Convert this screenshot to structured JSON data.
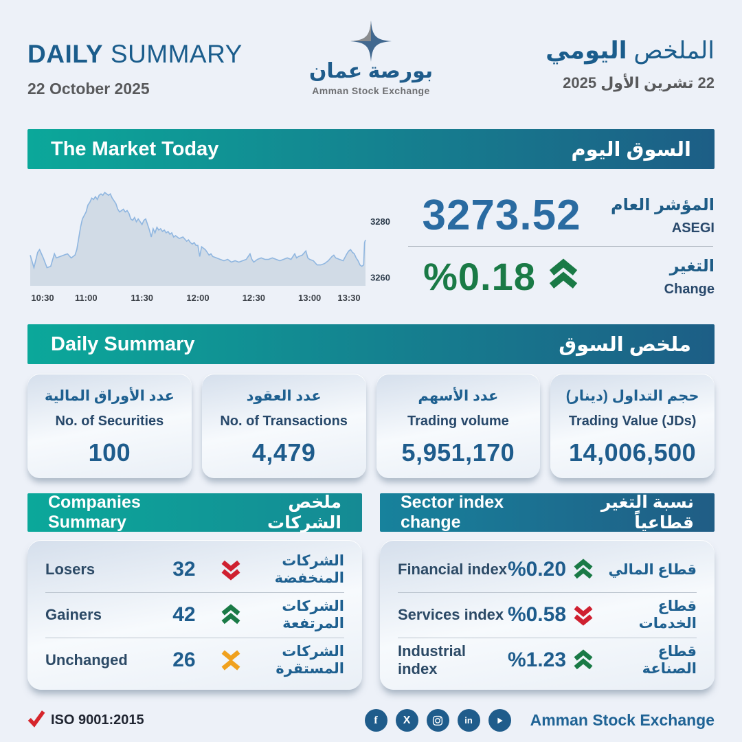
{
  "header": {
    "title_en_bold": "DAILY",
    "title_en_rest": " SUMMARY",
    "date_en": "22 October 2025",
    "title_ar_prefix": "الملخص ",
    "title_ar_bold": "اليومي",
    "date_ar": "22 تشرين الأول 2025",
    "logo": {
      "name_ar": "بورصة عمان",
      "name_en": "Amman Stock Exchange"
    }
  },
  "market_today": {
    "banner_en": "The Market Today",
    "banner_ar": "السوق اليوم",
    "index_value": "3273.52",
    "index_label_ar": "المؤشر العام",
    "index_label_en": "ASEGI",
    "change_value": "%0.18",
    "change_direction": "up",
    "change_label_ar": "التغير",
    "change_label_en": "Change"
  },
  "chart_data": {
    "type": "area",
    "title": "ASEGI general index intraday",
    "x_ticks": [
      "10:30",
      "11:00",
      "11:30",
      "12:00",
      "12:30",
      "13:00",
      "13:30"
    ],
    "x_tick_minutes": [
      0,
      30,
      60,
      90,
      120,
      150,
      180
    ],
    "y_ticks": [
      3280,
      3260
    ],
    "ylim": [
      3257,
      3293
    ],
    "line_color": "#8fb6e0",
    "fill_color": "#cdd8e3",
    "points": [
      [
        0,
        3268
      ],
      [
        2,
        3263.5
      ],
      [
        4,
        3269
      ],
      [
        5,
        3270
      ],
      [
        7,
        3267
      ],
      [
        9,
        3263.5
      ],
      [
        11,
        3264
      ],
      [
        13,
        3268.5
      ],
      [
        14,
        3267
      ],
      [
        16,
        3267.5
      ],
      [
        18,
        3268
      ],
      [
        20,
        3268.5
      ],
      [
        22,
        3267
      ],
      [
        24,
        3268
      ],
      [
        25,
        3270
      ],
      [
        26,
        3274
      ],
      [
        27,
        3278
      ],
      [
        28,
        3281
      ],
      [
        30,
        3283.5
      ],
      [
        31,
        3286
      ],
      [
        32,
        3287
      ],
      [
        33,
        3288.5
      ],
      [
        34,
        3288
      ],
      [
        35,
        3289
      ],
      [
        36,
        3288
      ],
      [
        37,
        3289.5
      ],
      [
        38,
        3290
      ],
      [
        39,
        3289.5
      ],
      [
        40,
        3290.5
      ],
      [
        41,
        3290
      ],
      [
        42,
        3289.5
      ],
      [
        43,
        3290
      ],
      [
        44,
        3288.5
      ],
      [
        45,
        3287.5
      ],
      [
        46,
        3286.5
      ],
      [
        47,
        3284.5
      ],
      [
        48,
        3283.5
      ],
      [
        49,
        3284
      ],
      [
        50,
        3284.5
      ],
      [
        51,
        3283.5
      ],
      [
        52,
        3284
      ],
      [
        53,
        3283
      ],
      [
        54,
        3281
      ],
      [
        55,
        3280.5
      ],
      [
        56,
        3281.5
      ],
      [
        57,
        3280
      ],
      [
        58,
        3281
      ],
      [
        59,
        3280
      ],
      [
        60,
        3279
      ],
      [
        61,
        3280.5
      ],
      [
        62,
        3281
      ],
      [
        63,
        3279
      ],
      [
        64,
        3277
      ],
      [
        65,
        3274.5
      ],
      [
        66,
        3277.5
      ],
      [
        67,
        3276
      ],
      [
        68,
        3278
      ],
      [
        69,
        3277
      ],
      [
        70,
        3277.5
      ],
      [
        71,
        3276.5
      ],
      [
        72,
        3277
      ],
      [
        73,
        3276
      ],
      [
        74,
        3276.5
      ],
      [
        75,
        3275.5
      ],
      [
        76,
        3276
      ],
      [
        77,
        3274.5
      ],
      [
        78,
        3275
      ],
      [
        80,
        3274
      ],
      [
        82,
        3274.5
      ],
      [
        84,
        3273
      ],
      [
        85,
        3273.5
      ],
      [
        86,
        3272.5
      ],
      [
        87,
        3272
      ],
      [
        88,
        3272.5
      ],
      [
        89,
        3271.5
      ],
      [
        90,
        3271.5
      ],
      [
        91,
        3267.5
      ],
      [
        92,
        3271
      ],
      [
        93,
        3270.5
      ],
      [
        94,
        3270
      ],
      [
        95,
        3269
      ],
      [
        96,
        3268
      ],
      [
        97,
        3268.5
      ],
      [
        98,
        3267.5
      ],
      [
        100,
        3267
      ],
      [
        102,
        3266.5
      ],
      [
        104,
        3266
      ],
      [
        106,
        3266.5
      ],
      [
        108,
        3265.5
      ],
      [
        110,
        3266
      ],
      [
        112,
        3265.5
      ],
      [
        114,
        3266
      ],
      [
        116,
        3266.5
      ],
      [
        118,
        3268.5
      ],
      [
        119,
        3266.5
      ],
      [
        120,
        3265.5
      ],
      [
        122,
        3266.5
      ],
      [
        124,
        3267
      ],
      [
        126,
        3266.5
      ],
      [
        128,
        3266.5
      ],
      [
        130,
        3267
      ],
      [
        132,
        3266.5
      ],
      [
        134,
        3266
      ],
      [
        136,
        3266.5
      ],
      [
        138,
        3267
      ],
      [
        140,
        3266.5
      ],
      [
        142,
        3268.5
      ],
      [
        143,
        3267
      ],
      [
        144,
        3267.5
      ],
      [
        146,
        3268
      ],
      [
        148,
        3269.5
      ],
      [
        149,
        3267
      ],
      [
        150,
        3266.5
      ],
      [
        152,
        3266
      ],
      [
        154,
        3264.5
      ],
      [
        156,
        3264.5
      ],
      [
        158,
        3265
      ],
      [
        160,
        3266
      ],
      [
        162,
        3267.5
      ],
      [
        163,
        3268
      ],
      [
        164,
        3267
      ],
      [
        166,
        3266.5
      ],
      [
        168,
        3266
      ],
      [
        170,
        3268.5
      ],
      [
        171,
        3269.5
      ],
      [
        172,
        3270
      ],
      [
        173,
        3269
      ],
      [
        174,
        3268.5
      ],
      [
        175,
        3267
      ],
      [
        176,
        3266
      ],
      [
        177,
        3264.5
      ],
      [
        178,
        3264
      ],
      [
        179,
        3264.5
      ],
      [
        179.5,
        3272.5
      ],
      [
        180,
        3273.5
      ]
    ]
  },
  "daily_summary": {
    "banner_en": "Daily Summary",
    "banner_ar": "ملخص السوق",
    "cards": [
      {
        "label_ar": "عدد الأوراق المالية",
        "label_en": "No. of Securities",
        "value": "100"
      },
      {
        "label_ar": "عدد العقود",
        "label_en": "No. of Transactions",
        "value": "4,479"
      },
      {
        "label_ar": "عدد الأسهم",
        "label_en": "Trading volume",
        "value": "5,951,170"
      },
      {
        "label_ar": "حجم التداول (دينار)",
        "label_en": "Trading Value (JDs)",
        "value": "14,006,500"
      }
    ]
  },
  "companies_summary": {
    "banner_en": "Companies Summary",
    "banner_ar": "ملخص الشركات",
    "rows": [
      {
        "label_en": "Losers",
        "value": "32",
        "direction": "down",
        "label_ar": "الشركات المنخفضة"
      },
      {
        "label_en": "Gainers",
        "value": "42",
        "direction": "up",
        "label_ar": "الشركات المرتفعة"
      },
      {
        "label_en": "Unchanged",
        "value": "26",
        "direction": "neutral",
        "label_ar": "الشركات المستقرة"
      }
    ]
  },
  "sector_index": {
    "banner_en": "Sector index change",
    "banner_ar": "نسبة التغير قطاعياً",
    "rows": [
      {
        "label_en": "Financial index",
        "value": "%0.20",
        "direction": "up",
        "label_ar": "قطاع المالي"
      },
      {
        "label_en": "Services index",
        "value": "%0.58",
        "direction": "down",
        "label_ar": "قطاع الخدمات"
      },
      {
        "label_en": "Industrial index",
        "value": "%1.23",
        "direction": "up",
        "label_ar": "قطاع الصناعة"
      }
    ]
  },
  "footer": {
    "iso_label": "ISO 9001:2015",
    "brand": "Amman Stock Exchange",
    "social_icons": [
      "facebook",
      "x",
      "instagram",
      "linkedin",
      "youtube"
    ]
  },
  "colors": {
    "background": "#edf1f8",
    "banner_teal": "#0ba89a",
    "banner_blue": "#1d5e86",
    "heading_blue": "#1b5d8c",
    "value_blue": "#1e5c8c",
    "positive_green": "#1a7a46",
    "negative_red": "#cf2030",
    "neutral_orange": "#f0a11e"
  }
}
